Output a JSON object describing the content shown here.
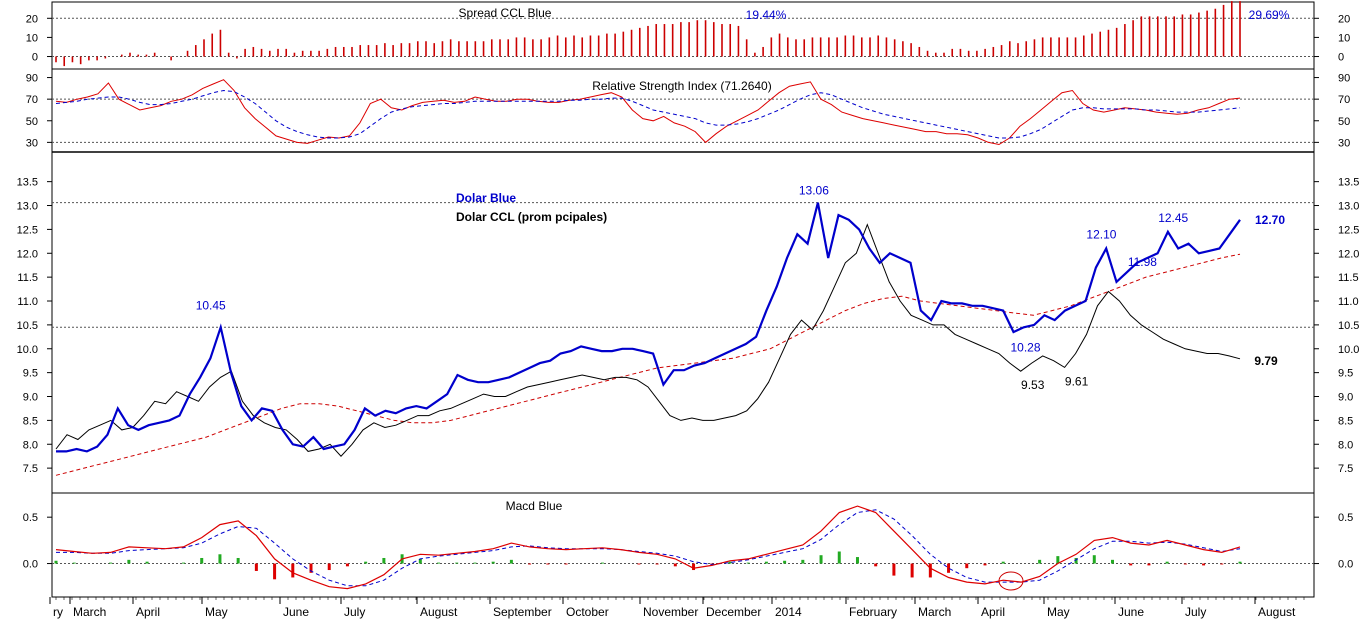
{
  "chart_data": [
    {
      "type": "bar",
      "title": "Spread CCL Blue",
      "y_ticks": [
        "20",
        "10",
        "0"
      ],
      "reference_lines": [
        20,
        0
      ],
      "annotations": [
        "19.44%",
        "29.69%"
      ],
      "ylim": [
        -6,
        28
      ],
      "series": [
        {
          "name": "",
          "color": "#cc0000",
          "values": [
            -3,
            -5,
            -3,
            -4,
            -2,
            -2,
            -1,
            0,
            1,
            2,
            1,
            1,
            2,
            0,
            -2,
            0,
            3,
            6,
            9,
            12,
            14,
            2,
            -1,
            4,
            5,
            4,
            3,
            4,
            4,
            2,
            3,
            3,
            3,
            4,
            5,
            5,
            5,
            6,
            6,
            6,
            7,
            6,
            7,
            7,
            8,
            8,
            7,
            8,
            9,
            8,
            8,
            8,
            8,
            9,
            9,
            9,
            10,
            10,
            9,
            9,
            10,
            11,
            10,
            11,
            10,
            11,
            11,
            12,
            12,
            13,
            14,
            15,
            16,
            17,
            17,
            17,
            18,
            18,
            19,
            19,
            18,
            17,
            17,
            16,
            9,
            2,
            5,
            10,
            12,
            10,
            9,
            9,
            10,
            10,
            10,
            10,
            11,
            11,
            10,
            10,
            11,
            10,
            9,
            8,
            7,
            5,
            3,
            2,
            2,
            4,
            4,
            3,
            3,
            4,
            5,
            6,
            8,
            7,
            8,
            9,
            10,
            10,
            10,
            10,
            10,
            11,
            12,
            13,
            14,
            15,
            17,
            19,
            21,
            21,
            21,
            21,
            21,
            22,
            22,
            23,
            24,
            25,
            27,
            29,
            29
          ]
        }
      ]
    },
    {
      "type": "line",
      "title": "Relative Strength Index (71.2640)",
      "y_ticks": [
        "90",
        "70",
        "50",
        "30"
      ],
      "reference_lines": [
        70,
        30
      ],
      "ylim": [
        22,
        97
      ],
      "series": [
        {
          "name": "",
          "color": "#dd0000",
          "style": "solid",
          "values": [
            68,
            67,
            70,
            72,
            75,
            85,
            70,
            65,
            60,
            62,
            64,
            68,
            70,
            74,
            80,
            84,
            88,
            78,
            62,
            52,
            44,
            36,
            33,
            30,
            29,
            32,
            35,
            34,
            36,
            48,
            66,
            70,
            62,
            60,
            64,
            67,
            68,
            69,
            67,
            68,
            72,
            70,
            68,
            68,
            70,
            70,
            68,
            67,
            67,
            69,
            70,
            72,
            74,
            76,
            72,
            60,
            52,
            50,
            54,
            48,
            45,
            40,
            30,
            38,
            45,
            50,
            55,
            60,
            68,
            76,
            82,
            84,
            86,
            70,
            65,
            58,
            55,
            52,
            50,
            48,
            46,
            44,
            42,
            40,
            40,
            38,
            38,
            37,
            34,
            30,
            28,
            34,
            45,
            52,
            60,
            68,
            76,
            78,
            66,
            60,
            58,
            60,
            62,
            61,
            60,
            58,
            57,
            56,
            57,
            60,
            62,
            66,
            70,
            71
          ]
        },
        {
          "name": "",
          "color": "#0000cc",
          "style": "dashed",
          "values": [
            66,
            67,
            68,
            70,
            71,
            72,
            72,
            70,
            67,
            65,
            65,
            66,
            68,
            70,
            73,
            76,
            78,
            77,
            72,
            66,
            58,
            50,
            44,
            40,
            37,
            35,
            34,
            34,
            35,
            38,
            45,
            52,
            58,
            61,
            63,
            64,
            65,
            66,
            66,
            67,
            68,
            68,
            68,
            68,
            68,
            68,
            68,
            68,
            68,
            69,
            69,
            70,
            70,
            71,
            71,
            68,
            64,
            60,
            58,
            56,
            54,
            52,
            48,
            46,
            46,
            47,
            49,
            52,
            56,
            60,
            65,
            70,
            74,
            76,
            74,
            70,
            66,
            62,
            59,
            56,
            54,
            52,
            50,
            48,
            46,
            44,
            42,
            40,
            38,
            36,
            34,
            34,
            35,
            38,
            42,
            48,
            54,
            60,
            62,
            62,
            61,
            61,
            61,
            61,
            60,
            60,
            59,
            58,
            58,
            58,
            59,
            60,
            61,
            62
          ]
        }
      ]
    },
    {
      "type": "line",
      "title": "Dolar Blue",
      "subtitle": "Dolar CCL (prom pcipales)",
      "y_ticks": [
        "13.5",
        "13.0",
        "12.5",
        "12.0",
        "11.5",
        "11.0",
        "10.5",
        "10.0",
        "9.5",
        "9.0",
        "8.5",
        "8.0",
        "7.5"
      ],
      "reference_lines": [
        13.06,
        10.45
      ],
      "ylim": [
        7.0,
        14.1
      ],
      "annotations": [
        {
          "text": "10.45",
          "color": "#0000cc"
        },
        {
          "text": "13.06",
          "color": "#0000cc"
        },
        {
          "text": "12.10",
          "color": "#0000cc"
        },
        {
          "text": "12.45",
          "color": "#0000cc"
        },
        {
          "text": "12.70",
          "color": "#0000cc",
          "bold": true
        },
        {
          "text": "11.98",
          "color": "#0000cc"
        },
        {
          "text": "10.28",
          "color": "#0000cc"
        },
        {
          "text": "9.53",
          "color": "#000000"
        },
        {
          "text": "9.61",
          "color": "#000000"
        },
        {
          "text": "9.79",
          "color": "#000000",
          "bold": true
        }
      ],
      "series": [
        {
          "name": "Dolar Blue",
          "color": "#0000cc",
          "values": [
            7.85,
            7.85,
            7.9,
            7.85,
            7.95,
            8.2,
            8.75,
            8.4,
            8.3,
            8.4,
            8.45,
            8.5,
            8.6,
            9.05,
            9.4,
            9.8,
            10.45,
            9.5,
            8.8,
            8.5,
            8.75,
            8.7,
            8.3,
            8.0,
            7.95,
            8.15,
            7.9,
            7.95,
            8.0,
            8.3,
            8.75,
            8.6,
            8.7,
            8.65,
            8.75,
            8.8,
            8.75,
            8.9,
            9.05,
            9.45,
            9.35,
            9.3,
            9.3,
            9.35,
            9.4,
            9.5,
            9.6,
            9.7,
            9.75,
            9.9,
            9.95,
            10.05,
            10.0,
            9.95,
            9.95,
            10.0,
            10.0,
            9.95,
            9.9,
            9.25,
            9.55,
            9.55,
            9.65,
            9.7,
            9.8,
            9.9,
            10.0,
            10.1,
            10.25,
            10.8,
            11.3,
            11.9,
            12.4,
            12.2,
            13.06,
            11.9,
            12.8,
            12.7,
            12.5,
            12.1,
            11.8,
            12.0,
            11.9,
            11.8,
            10.8,
            10.6,
            11.0,
            10.95,
            10.95,
            10.9,
            10.9,
            10.85,
            10.8,
            10.35,
            10.45,
            10.5,
            10.7,
            10.6,
            10.8,
            10.9,
            11.0,
            11.7,
            12.1,
            11.4,
            11.6,
            11.8,
            11.9,
            12.0,
            12.45,
            12.1,
            12.2,
            12.0,
            12.05,
            12.1,
            12.4,
            12.7
          ]
        },
        {
          "name": "Dolar CCL (prom pcipales)",
          "color": "#000000",
          "values": [
            7.9,
            8.2,
            8.1,
            8.3,
            8.4,
            8.5,
            8.3,
            8.35,
            8.6,
            8.9,
            8.85,
            9.1,
            9.0,
            8.9,
            9.2,
            9.4,
            9.53,
            8.9,
            8.6,
            8.45,
            8.35,
            8.3,
            8.1,
            7.85,
            7.9,
            8.0,
            7.75,
            8.0,
            8.3,
            8.45,
            8.35,
            8.4,
            8.5,
            8.6,
            8.6,
            8.7,
            8.75,
            8.85,
            8.95,
            9.05,
            9.0,
            9.0,
            9.1,
            9.2,
            9.25,
            9.3,
            9.35,
            9.4,
            9.45,
            9.4,
            9.35,
            9.4,
            9.4,
            9.35,
            9.2,
            8.9,
            8.6,
            8.5,
            8.55,
            8.5,
            8.5,
            8.55,
            8.6,
            8.7,
            8.95,
            9.3,
            9.8,
            10.3,
            10.6,
            10.4,
            10.8,
            11.3,
            11.8,
            12.0,
            12.6,
            12.0,
            11.4,
            11.0,
            10.7,
            10.6,
            10.5,
            10.5,
            10.3,
            10.2,
            10.1,
            10.0,
            9.9,
            9.7,
            9.53,
            9.7,
            9.85,
            9.75,
            9.61,
            9.9,
            10.3,
            10.9,
            11.2,
            11.0,
            10.7,
            10.5,
            10.35,
            10.2,
            10.1,
            10.0,
            9.95,
            9.9,
            9.9,
            9.85,
            9.79
          ]
        },
        {
          "name": "",
          "color": "#cc0000",
          "style": "dashed",
          "values": [
            7.35,
            7.45,
            7.55,
            7.65,
            7.75,
            7.85,
            7.95,
            8.05,
            8.15,
            8.3,
            8.45,
            8.6,
            8.75,
            8.85,
            8.85,
            8.8,
            8.7,
            8.6,
            8.5,
            8.45,
            8.45,
            8.5,
            8.6,
            8.7,
            8.8,
            8.9,
            9.0,
            9.1,
            9.2,
            9.3,
            9.4,
            9.5,
            9.6,
            9.65,
            9.7,
            9.75,
            9.8,
            9.9,
            10.0,
            10.2,
            10.4,
            10.6,
            10.8,
            10.95,
            11.05,
            11.1,
            11.0,
            10.95,
            10.9,
            10.85,
            10.8,
            10.75,
            10.7,
            10.8,
            10.9,
            11.05,
            11.2,
            11.35,
            11.5,
            11.6,
            11.7,
            11.8,
            11.9,
            11.98
          ]
        }
      ]
    },
    {
      "type": "bar",
      "title": "Macd Blue",
      "y_ticks": [
        "0.5",
        "0.0"
      ],
      "reference_lines": [
        0
      ],
      "ylim": [
        -0.35,
        0.75
      ],
      "series": [
        {
          "name": "",
          "color": "#dd0000",
          "style": "solid",
          "values": [
            0.15,
            0.13,
            0.11,
            0.12,
            0.18,
            0.17,
            0.16,
            0.18,
            0.28,
            0.42,
            0.46,
            0.3,
            0.05,
            -0.1,
            -0.18,
            -0.25,
            -0.27,
            -0.22,
            -0.12,
            0.05,
            0.1,
            0.09,
            0.11,
            0.13,
            0.16,
            0.22,
            0.18,
            0.16,
            0.15,
            0.16,
            0.17,
            0.15,
            0.12,
            0.1,
            0.05,
            -0.05,
            -0.02,
            0.03,
            0.05,
            0.1,
            0.15,
            0.2,
            0.35,
            0.55,
            0.62,
            0.55,
            0.35,
            0.15,
            -0.05,
            -0.15,
            -0.2,
            -0.22,
            -0.18,
            -0.2,
            -0.14,
            0.0,
            0.1,
            0.25,
            0.28,
            0.22,
            0.2,
            0.25,
            0.2,
            0.15,
            0.12,
            0.18
          ]
        },
        {
          "name": "",
          "color": "#0000cc",
          "style": "dashed",
          "values": [
            0.12,
            0.12,
            0.11,
            0.11,
            0.14,
            0.15,
            0.16,
            0.17,
            0.22,
            0.32,
            0.4,
            0.38,
            0.22,
            0.05,
            -0.08,
            -0.18,
            -0.24,
            -0.24,
            -0.18,
            -0.05,
            0.05,
            0.08,
            0.1,
            0.12,
            0.14,
            0.18,
            0.19,
            0.17,
            0.16,
            0.16,
            0.16,
            0.15,
            0.13,
            0.11,
            0.08,
            0.02,
            -0.01,
            0.01,
            0.04,
            0.08,
            0.12,
            0.16,
            0.26,
            0.42,
            0.55,
            0.58,
            0.48,
            0.3,
            0.1,
            -0.05,
            -0.15,
            -0.2,
            -0.2,
            -0.2,
            -0.18,
            -0.08,
            0.04,
            0.16,
            0.24,
            0.24,
            0.22,
            0.23,
            0.21,
            0.17,
            0.13,
            0.16
          ]
        },
        {
          "name": "",
          "color": "#22aa22",
          "style": "histogram",
          "values": [
            0.03,
            0.01,
            0.0,
            0.01,
            0.04,
            0.02,
            0.0,
            0.01,
            0.06,
            0.1,
            0.06,
            -0.08,
            -0.17,
            -0.15,
            -0.1,
            -0.07,
            -0.03,
            0.02,
            0.06,
            0.1,
            0.05,
            0.01,
            0.01,
            0.01,
            0.02,
            0.04,
            -0.01,
            -0.01,
            -0.01,
            0.0,
            0.01,
            0.0,
            -0.01,
            -0.01,
            -0.03,
            -0.07,
            -0.01,
            0.02,
            0.01,
            0.02,
            0.03,
            0.04,
            0.09,
            0.13,
            0.07,
            -0.03,
            -0.13,
            -0.15,
            -0.15,
            -0.1,
            -0.05,
            -0.02,
            0.02,
            0.0,
            0.04,
            0.08,
            0.06,
            0.09,
            0.04,
            -0.02,
            -0.02,
            0.02,
            -0.01,
            -0.02,
            -0.01,
            0.02
          ]
        }
      ]
    }
  ],
  "x_axis": {
    "labels": [
      "ry",
      "March",
      "April",
      "May",
      "June",
      "July",
      "August",
      "September",
      "October",
      "November",
      "December",
      "2014",
      "February",
      "March",
      "April",
      "May",
      "June",
      "July",
      "August"
    ]
  }
}
